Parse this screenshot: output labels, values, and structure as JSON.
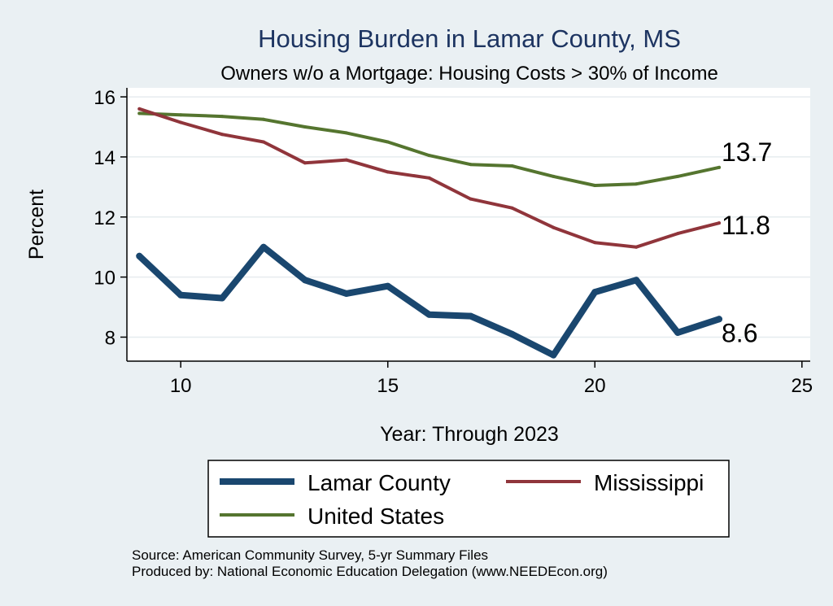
{
  "colors": {
    "background": "#eaf0f3",
    "plot_background": "#ffffff",
    "grid": "#e6ecef",
    "lamar": "#1a476f",
    "mississippi": "#90353b",
    "united_states": "#55752f"
  },
  "chart_data": {
    "type": "line",
    "title": "Housing Burden in Lamar County, MS",
    "subtitle": "Owners w/o a Mortgage: Housing Costs > 30% of Income",
    "xlabel": "Year: Through 2023",
    "ylabel": "Percent",
    "xlim": [
      8.7,
      25.2
    ],
    "ylim": [
      7.2,
      16.3
    ],
    "xticks": [
      10,
      15,
      20,
      25
    ],
    "yticks": [
      8,
      10,
      12,
      14,
      16
    ],
    "grid": true,
    "legend_position": "bottom",
    "x": [
      9,
      10,
      11,
      12,
      13,
      14,
      15,
      16,
      17,
      18,
      19,
      20,
      21,
      22,
      23
    ],
    "series": [
      {
        "name": "Lamar County",
        "key": "lamar",
        "values": [
          10.7,
          9.4,
          9.3,
          11.0,
          9.9,
          9.45,
          9.7,
          8.75,
          8.7,
          8.1,
          7.4,
          9.5,
          9.9,
          8.15,
          8.6
        ],
        "end_label": "8.6",
        "linewidth": 8
      },
      {
        "name": "Mississippi",
        "key": "mississippi",
        "values": [
          15.6,
          15.15,
          14.75,
          14.5,
          13.8,
          13.9,
          13.5,
          13.3,
          12.6,
          12.3,
          11.65,
          11.15,
          11.0,
          11.45,
          11.8
        ],
        "end_label": "11.8",
        "linewidth": 4
      },
      {
        "name": "United States",
        "key": "united_states",
        "values": [
          15.45,
          15.4,
          15.35,
          15.25,
          15.0,
          14.8,
          14.5,
          14.05,
          13.75,
          13.7,
          13.35,
          13.05,
          13.1,
          13.35,
          13.65
        ],
        "end_label": "13.7",
        "linewidth": 4
      }
    ]
  },
  "source": {
    "line1": "Source: American Community Survey, 5-yr Summary Files",
    "line2": "Produced by: National Economic Education Delegation (www.NEEDEcon.org)"
  }
}
